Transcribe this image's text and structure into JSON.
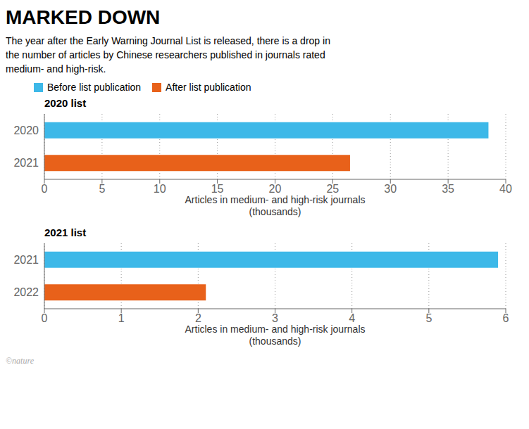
{
  "title": "MARKED DOWN",
  "subtitle": "The year after the Early Warning Journal List is released, there is a drop in\nthe number of articles by Chinese researchers published in journals rated\nmedium- and high-risk.",
  "annotations": [
    "©nature"
  ],
  "chart_data": [
    {
      "type": "bar",
      "orientation": "horizontal",
      "stacked": true,
      "grid": true,
      "legend": "upper left",
      "title": "2020 list",
      "categories": [
        "2020",
        "2021"
      ],
      "series": [
        {
          "name": "Before list publication",
          "color": "#3db8e8",
          "values": [
            38.5,
            null
          ]
        },
        {
          "name": "After list publication",
          "color": "#e8611a",
          "values": [
            null,
            26.5
          ]
        }
      ],
      "xlabel": "Articles in medium- and high-risk journals\n(thousands)",
      "xlim": [
        0,
        40
      ],
      "xticks": [
        0,
        5,
        10,
        15,
        20,
        25,
        30,
        35,
        40
      ]
    },
    {
      "type": "bar",
      "orientation": "horizontal",
      "stacked": true,
      "grid": true,
      "title": "2021 list",
      "categories": [
        "2021",
        "2022"
      ],
      "series": [
        {
          "name": "Before list publication",
          "color": "#3db8e8",
          "values": [
            5.9,
            null
          ]
        },
        {
          "name": "After list publication",
          "color": "#e8611a",
          "values": [
            null,
            2.1
          ]
        }
      ],
      "xlabel": "Articles in medium- and high-risk journals\n(thousands)",
      "xlim": [
        0,
        6
      ],
      "xticks": [
        0,
        1,
        2,
        3,
        4,
        5,
        6
      ]
    }
  ]
}
